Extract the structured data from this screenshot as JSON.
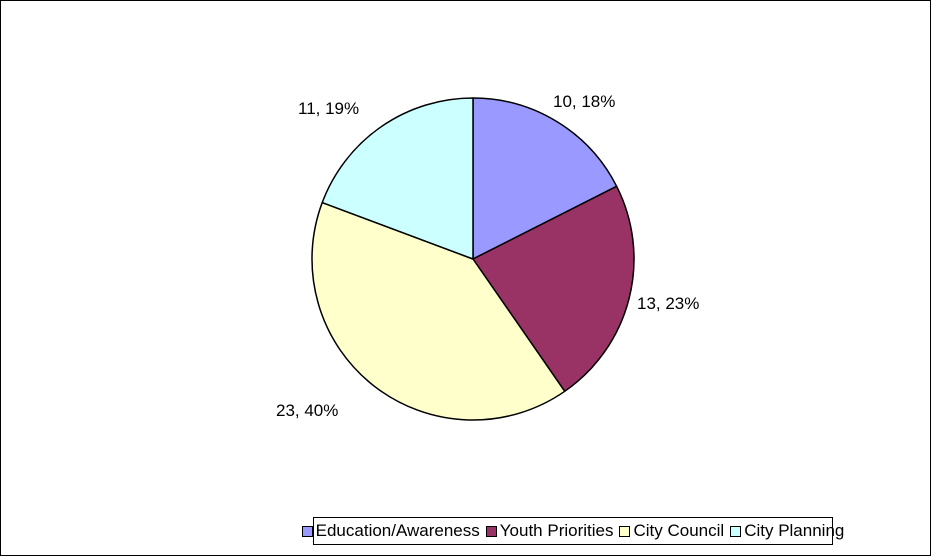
{
  "chart_data": {
    "type": "pie",
    "title": "",
    "categories": [
      "Education/Awareness",
      "Youth Priorities",
      "City Council",
      "City Planning"
    ],
    "values": [
      10,
      13,
      23,
      11
    ],
    "percentages": [
      18,
      23,
      40,
      19
    ],
    "data_labels": [
      "10, 18%",
      "13, 23%",
      "23, 40%",
      "11, 19%"
    ],
    "colors": [
      "#9999ff",
      "#993366",
      "#ffffcc",
      "#ccffff"
    ],
    "start_angle": "12 o'clock, clockwise",
    "legend_position": "bottom",
    "legend": [
      "Education/Awareness",
      "Youth Priorities",
      "City Council",
      "City Planning"
    ]
  }
}
